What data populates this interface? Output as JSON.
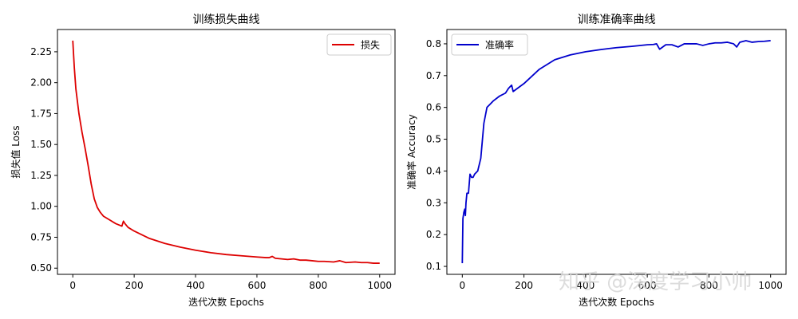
{
  "chart_data": [
    {
      "type": "line",
      "title": "训练损失曲线",
      "xlabel": "迭代次数 Epochs",
      "ylabel": "损失值 Loss",
      "xlim": [
        -50,
        1050
      ],
      "ylim": [
        0.45,
        2.43
      ],
      "xticks": [
        0,
        200,
        400,
        600,
        800,
        1000
      ],
      "yticks": [
        0.5,
        0.75,
        1.0,
        1.25,
        1.5,
        1.75,
        2.0,
        2.25
      ],
      "ytick_labels": [
        "0.50",
        "0.75",
        "1.00",
        "1.25",
        "1.50",
        "1.75",
        "2.00",
        "2.25"
      ],
      "grid": false,
      "legend_position": "top-right",
      "series": [
        {
          "name": "损失",
          "color": "#dd0000",
          "x": [
            0,
            2,
            5,
            10,
            20,
            30,
            40,
            50,
            60,
            70,
            80,
            90,
            100,
            120,
            140,
            160,
            165,
            170,
            180,
            200,
            250,
            300,
            350,
            400,
            450,
            500,
            550,
            600,
            630,
            640,
            650,
            660,
            680,
            700,
            720,
            740,
            760,
            780,
            800,
            820,
            850,
            870,
            890,
            920,
            940,
            960,
            980,
            1000
          ],
          "values": [
            2.34,
            2.25,
            2.12,
            1.95,
            1.75,
            1.6,
            1.47,
            1.33,
            1.18,
            1.06,
            0.99,
            0.95,
            0.92,
            0.89,
            0.86,
            0.84,
            0.88,
            0.86,
            0.83,
            0.8,
            0.74,
            0.7,
            0.67,
            0.645,
            0.625,
            0.61,
            0.6,
            0.59,
            0.585,
            0.585,
            0.595,
            0.58,
            0.575,
            0.57,
            0.575,
            0.565,
            0.565,
            0.56,
            0.555,
            0.555,
            0.55,
            0.56,
            0.545,
            0.55,
            0.545,
            0.545,
            0.54,
            0.54
          ]
        }
      ]
    },
    {
      "type": "line",
      "title": "训练准确率曲线",
      "xlabel": "迭代次数 Epochs",
      "ylabel": "准确率 Accuracy",
      "xlim": [
        -50,
        1050
      ],
      "ylim": [
        0.075,
        0.845
      ],
      "xticks": [
        0,
        200,
        400,
        600,
        800,
        1000
      ],
      "yticks": [
        0.1,
        0.2,
        0.3,
        0.4,
        0.5,
        0.6,
        0.7,
        0.8
      ],
      "ytick_labels": [
        "0.1",
        "0.2",
        "0.3",
        "0.4",
        "0.5",
        "0.6",
        "0.7",
        "0.8"
      ],
      "grid": false,
      "legend_position": "top-left",
      "series": [
        {
          "name": "准确率",
          "color": "#0000cc",
          "x": [
            0,
            2,
            5,
            8,
            10,
            12,
            15,
            20,
            25,
            30,
            35,
            40,
            50,
            60,
            70,
            80,
            90,
            100,
            120,
            140,
            150,
            160,
            165,
            200,
            250,
            300,
            350,
            400,
            450,
            500,
            550,
            600,
            620,
            630,
            640,
            660,
            680,
            700,
            720,
            740,
            760,
            780,
            800,
            820,
            840,
            860,
            880,
            890,
            900,
            920,
            940,
            960,
            980,
            1000
          ],
          "values": [
            0.11,
            0.25,
            0.27,
            0.28,
            0.26,
            0.3,
            0.33,
            0.33,
            0.39,
            0.38,
            0.38,
            0.39,
            0.4,
            0.44,
            0.55,
            0.6,
            0.61,
            0.62,
            0.635,
            0.645,
            0.66,
            0.67,
            0.65,
            0.675,
            0.72,
            0.75,
            0.765,
            0.775,
            0.782,
            0.788,
            0.792,
            0.797,
            0.798,
            0.8,
            0.783,
            0.797,
            0.797,
            0.79,
            0.8,
            0.8,
            0.8,
            0.795,
            0.8,
            0.803,
            0.803,
            0.805,
            0.8,
            0.79,
            0.805,
            0.81,
            0.805,
            0.807,
            0.808,
            0.81
          ]
        }
      ]
    }
  ]
}
